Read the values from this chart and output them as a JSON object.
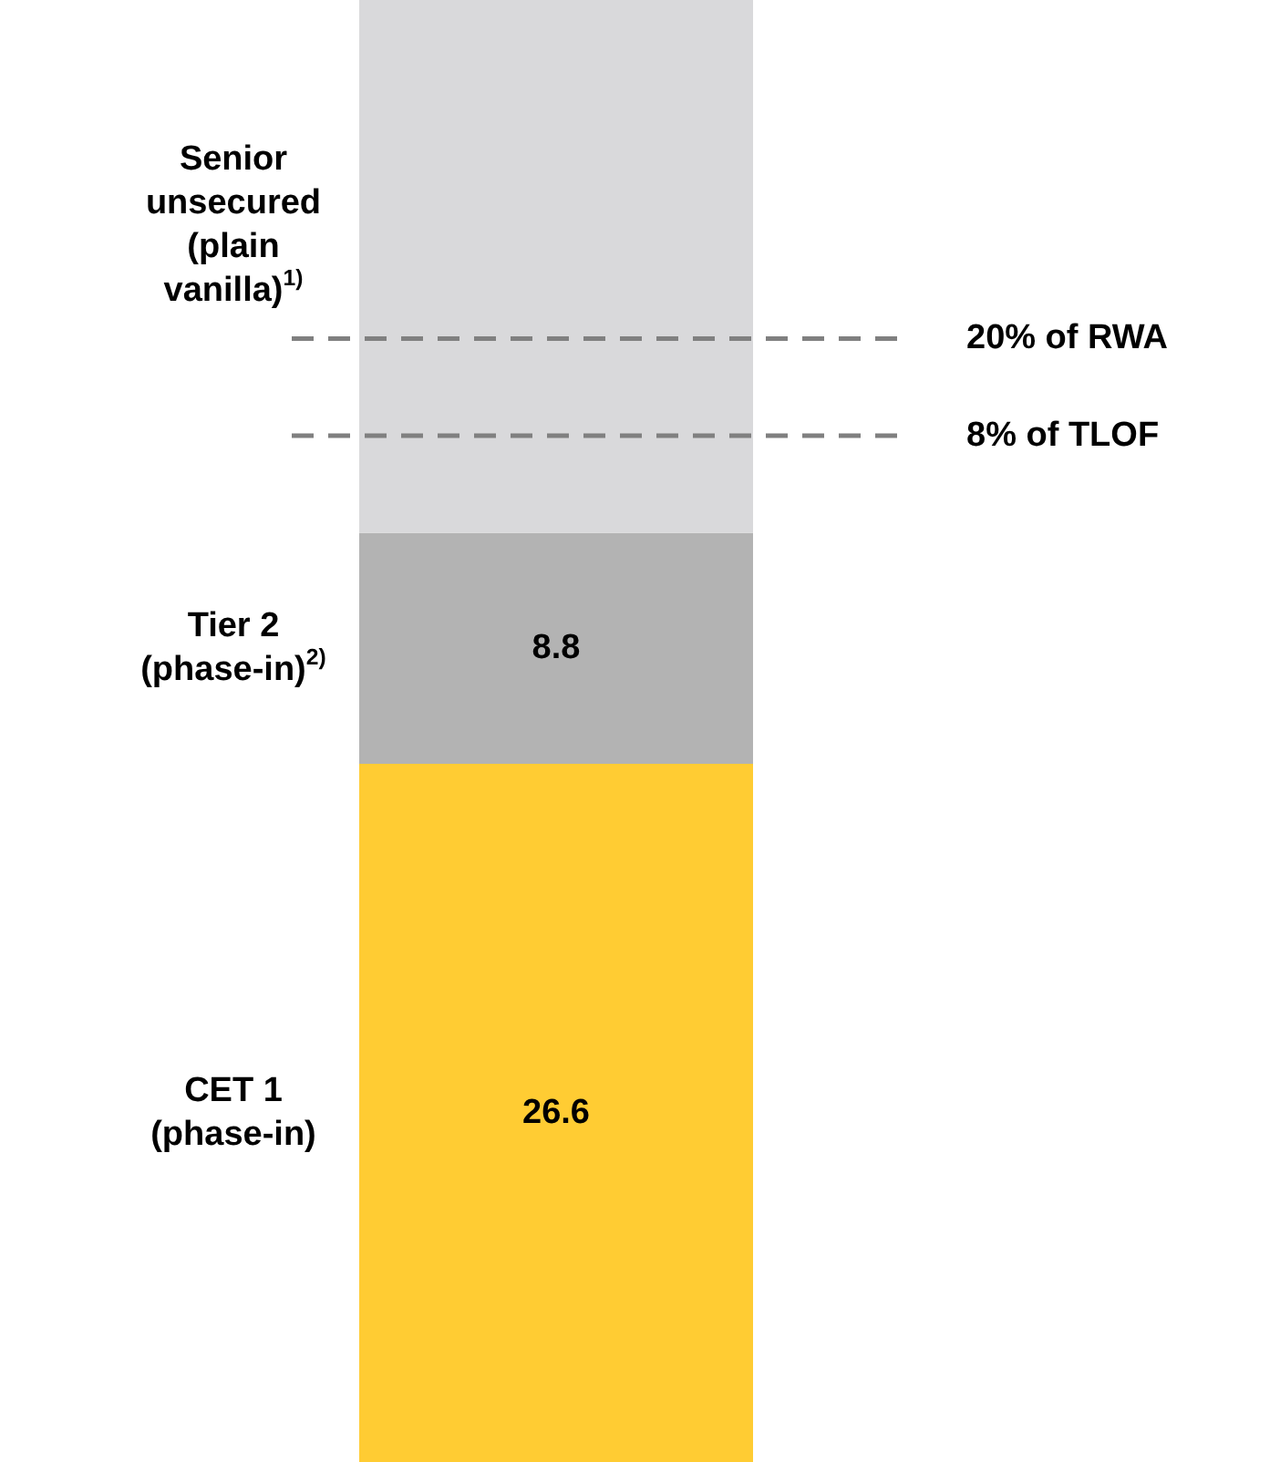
{
  "chart_data": {
    "type": "bar",
    "stacked": true,
    "categories": [
      null
    ],
    "ylim": [
      0,
      55.7
    ],
    "series": [
      {
        "name": "CET 1\n(phase-in)",
        "color": "#ffcc33",
        "values": [
          26.6
        ],
        "value_labels": [
          "26.6"
        ]
      },
      {
        "name": "Tier 2\n(phase-in)$^{2)}$",
        "color": "#b3b3b3",
        "values": [
          8.8
        ],
        "value_labels": [
          "8.8"
        ]
      },
      {
        "name": "Senior\nunsecured\n(plain\nvanilla)$^{1)}$",
        "color": "#d9d9db",
        "values": [
          20.3
        ]
      }
    ],
    "ref_lines": [
      {
        "axis": "y",
        "value": 42.8,
        "label": "20% of RWA",
        "color": "#808080",
        "line_style": "dashed"
      },
      {
        "axis": "y",
        "value": 39.1,
        "label": "8% of TLOF",
        "color": "#808080",
        "line_style": "dashed"
      }
    ]
  }
}
